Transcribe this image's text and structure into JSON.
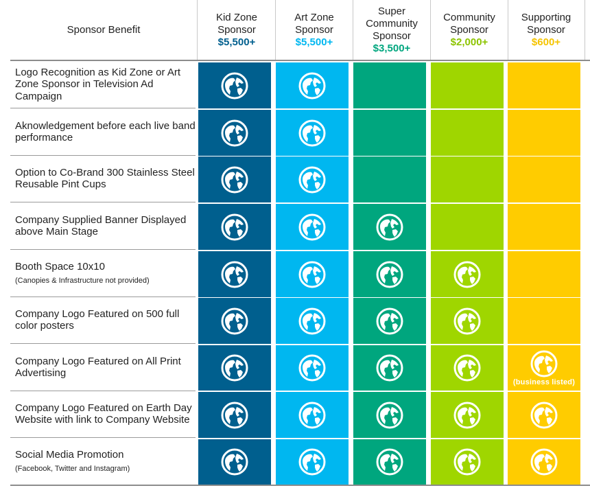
{
  "header": {
    "benefit_label": "Sponsor Benefit"
  },
  "tiers": [
    {
      "line1": "Kid Zone",
      "line2": "Sponsor",
      "line3": "",
      "price": "$5,500+",
      "color": "#005f8e",
      "price_color": "#005f8e"
    },
    {
      "line1": "Art Zone",
      "line2": "Sponsor",
      "line3": "",
      "price": "$5,500+",
      "color": "#00b7f0",
      "price_color": "#00b7f0"
    },
    {
      "line1": "Super",
      "line2": "Community",
      "line3": "Sponsor",
      "price": "$3,500+",
      "color": "#00a67e",
      "price_color": "#00a67e"
    },
    {
      "line1": "Community",
      "line2": "Sponsor",
      "line3": "",
      "price": "$2,000+",
      "color": "#9fd600",
      "price_color": "#8cc400"
    },
    {
      "line1": "Supporting",
      "line2": "Sponsor",
      "line3": "",
      "price": "$600+",
      "color": "#ffcc00",
      "price_color": "#f5c400"
    }
  ],
  "benefits": [
    {
      "label": "Logo Recognition as Kid Zone or Art Zone Sponsor in Television Ad Campaign",
      "note": "",
      "included": [
        true,
        true,
        false,
        false,
        false
      ]
    },
    {
      "label": "Aknowledgement before each live band performance",
      "note": "",
      "included": [
        true,
        true,
        false,
        false,
        false
      ]
    },
    {
      "label": "Option to Co-Brand 300 Stainless Steel Reusable Pint Cups",
      "note": "",
      "included": [
        true,
        true,
        false,
        false,
        false
      ]
    },
    {
      "label": "Company Supplied Banner Displayed above Main Stage",
      "note": "",
      "included": [
        true,
        true,
        true,
        false,
        false
      ]
    },
    {
      "label": "Booth Space 10x10",
      "note": "(Canopies & Infrastructure not provided)",
      "included": [
        true,
        true,
        true,
        true,
        false
      ]
    },
    {
      "label": "Company Logo Featured on 500 full color posters",
      "note": "",
      "included": [
        true,
        true,
        true,
        true,
        false
      ]
    },
    {
      "label": "Company Logo Featured on All Print Advertising",
      "note": "",
      "included": [
        true,
        true,
        true,
        true,
        true
      ],
      "cell_note": "(business listed)"
    },
    {
      "label": "Company Logo Featured on Earth Day Website with link to Company Website",
      "note": "",
      "included": [
        true,
        true,
        true,
        true,
        true
      ]
    },
    {
      "label": "Social Media Promotion",
      "note": "(Facebook, Twitter and Instagram)",
      "included": [
        true,
        true,
        true,
        true,
        true
      ]
    }
  ],
  "icon_name": "globe-icon",
  "icon_color": "#ffffff"
}
